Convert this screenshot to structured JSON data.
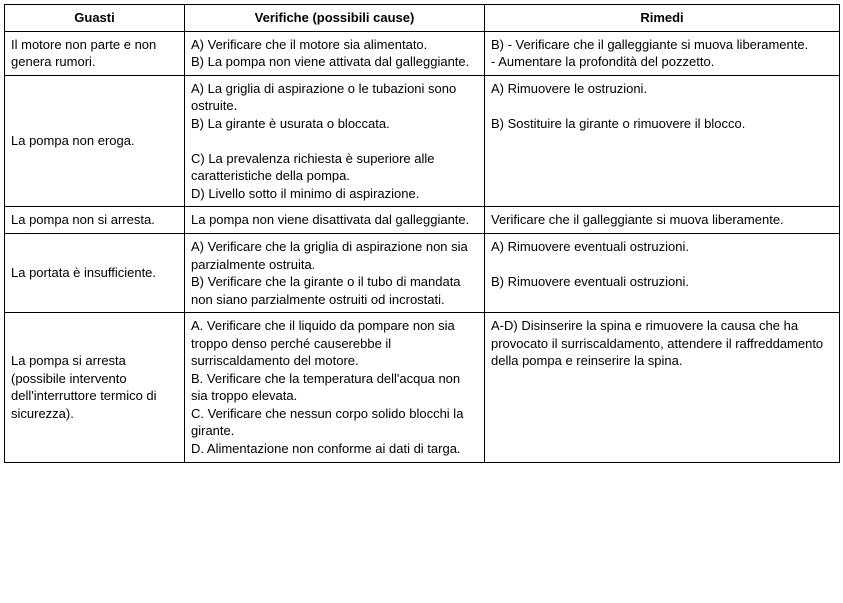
{
  "table": {
    "headers": [
      "Guasti",
      "Verifiche (possibili cause)",
      "Rimedi"
    ],
    "rows": [
      {
        "guasti": "Il motore non parte e non genera rumori.",
        "verifiche": "A)   Verificare che il motore sia alimentato.\nB)   La pompa non viene attivata dal galleggiante.",
        "rimedi": "B) - Verificare che il galleggiante si muova liberamente.\n- Aumentare la profondità del pozzetto."
      },
      {
        "guasti": "La pompa non eroga.",
        "verifiche": "A)   La griglia di aspirazione o le tubazioni sono ostruite.\nB)   La girante è usurata o bloccata.\n\nC)   La prevalenza richiesta è superiore alle caratteristiche della pompa.\nD)   Livello sotto il minimo di aspirazione.",
        "rimedi": "A)   Rimuovere le ostruzioni.\n\nB)   Sostituire la girante o rimuovere il blocco."
      },
      {
        "guasti": "La pompa non si arresta.",
        "verifiche": "La pompa non viene disattivata dal galleggiante.",
        "rimedi": "Verificare che il galleggiante si muova liberamente."
      },
      {
        "guasti": "La portata è insufficiente.",
        "verifiche": "A)   Verificare che la griglia di aspirazione non sia parzialmente ostruita.\nB)   Verificare che la girante o il tubo di mandata non siano parzialmente ostruiti od incrostati.",
        "rimedi": "A)   Rimuovere eventuali ostruzioni.\n\nB)   Rimuovere eventuali ostruzioni."
      },
      {
        "guasti": "La pompa si arresta (possibile intervento dell'interruttore termico di sicurezza).",
        "verifiche": "A.        Verificare che il liquido da pompare non sia troppo denso perché causerebbe il surriscaldamento del motore.\nB.        Verificare che la temperatura dell'acqua non sia troppo elevata.\nC.        Verificare che nessun corpo solido blocchi la girante.\nD.        Alimentazione non conforme ai dati di targa.",
        "rimedi": "A-D) Disinserire la spina e rimuovere la causa che ha provocato il surriscaldamento, attendere il raffreddamento della pompa e reinserire la spina."
      }
    ]
  }
}
